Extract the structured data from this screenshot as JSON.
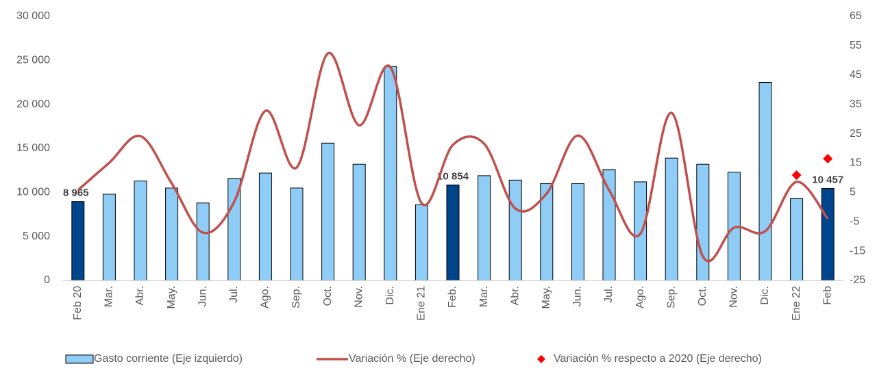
{
  "chart_data": {
    "type": "bar-line",
    "categories": [
      "Feb 20",
      "Mar.",
      "Abr.",
      "May.",
      "Jun.",
      "Jul.",
      "Ago.",
      "Sep.",
      "Oct.",
      "Nov.",
      "Dic.",
      "Ene 21",
      "Feb.",
      "Mar.",
      "Abr.",
      "May.",
      "Jun.",
      "Jul.",
      "Ago.",
      "Sep.",
      "Oct.",
      "Nov.",
      "Dic.",
      "Ene 22",
      "Feb"
    ],
    "series": [
      {
        "name": "Gasto corriente (Eje izquierdo)",
        "type": "bar",
        "axis": "y",
        "colors": [
          "#00458c",
          "#8fcdf7",
          "#8fcdf7",
          "#8fcdf7",
          "#8fcdf7",
          "#8fcdf7",
          "#8fcdf7",
          "#8fcdf7",
          "#8fcdf7",
          "#8fcdf7",
          "#8fcdf7",
          "#8fcdf7",
          "#00458c",
          "#8fcdf7",
          "#8fcdf7",
          "#8fcdf7",
          "#8fcdf7",
          "#8fcdf7",
          "#8fcdf7",
          "#8fcdf7",
          "#8fcdf7",
          "#8fcdf7",
          "#8fcdf7",
          "#8fcdf7",
          "#00458c"
        ],
        "color": "#8fcdf7",
        "values": [
          8965,
          9800,
          11300,
          10500,
          8800,
          11600,
          12200,
          10500,
          15600,
          13200,
          24300,
          8600,
          10854,
          11900,
          11400,
          11000,
          11000,
          12600,
          11200,
          13900,
          13200,
          12300,
          22500,
          9300,
          10457
        ],
        "value_labels": [
          "8 965",
          null,
          null,
          null,
          null,
          null,
          null,
          null,
          null,
          null,
          null,
          null,
          "10 854",
          null,
          null,
          null,
          null,
          null,
          null,
          null,
          null,
          null,
          null,
          null,
          "10 457"
        ]
      },
      {
        "name": "Variación % (Eje derecho)",
        "type": "line",
        "axis": "y2",
        "color": "#c0504d",
        "values": [
          5.8,
          15.1,
          24.2,
          8.1,
          -8.7,
          1.8,
          32.8,
          13.5,
          52.4,
          27.9,
          47.7,
          1.3,
          21.2,
          21.6,
          -0.5,
          4.6,
          24.4,
          5.8,
          -9.1,
          32.1,
          -16.8,
          -7.0,
          -8.2,
          8.6,
          -4.0
        ]
      },
      {
        "name": "Variación % respecto a 2020 (Eje derecho)",
        "type": "scatter",
        "axis": "y2",
        "color": "#ff0000",
        "values": [
          null,
          null,
          null,
          null,
          null,
          null,
          null,
          null,
          null,
          null,
          null,
          null,
          null,
          null,
          null,
          null,
          null,
          null,
          null,
          null,
          null,
          null,
          null,
          10.9,
          16.5
        ]
      }
    ],
    "ylim": [
      0,
      30000
    ],
    "yticks": [
      0,
      {
        "value": 5000,
        "label": "5 000"
      },
      {
        "value": 10000,
        "label": "10 000"
      },
      {
        "value": 15000,
        "label": "15 000"
      },
      {
        "value": 20000,
        "label": "20 000"
      },
      {
        "value": 25000,
        "label": "25 000"
      },
      {
        "value": 30000,
        "label": "30 000"
      }
    ],
    "y2lim": [
      -25,
      65
    ],
    "y2ticks": [
      -25,
      -15,
      -5,
      5,
      15,
      25,
      35,
      45,
      55,
      65
    ],
    "legend": "bottom"
  }
}
